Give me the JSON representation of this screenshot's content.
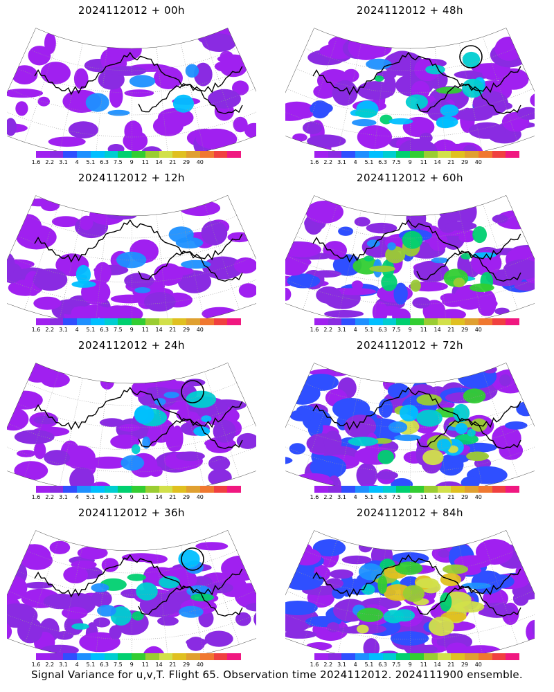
{
  "panels": [
    {
      "title": "2024112012 + 00h",
      "intensity": 0.15
    },
    {
      "title": "2024112012 + 48h",
      "intensity": 0.55,
      "circle": true
    },
    {
      "title": "2024112012 + 12h",
      "intensity": 0.25
    },
    {
      "title": "2024112012 + 60h",
      "intensity": 0.7
    },
    {
      "title": "2024112012 + 24h",
      "intensity": 0.38,
      "circle": true
    },
    {
      "title": "2024112012 + 72h",
      "intensity": 0.82
    },
    {
      "title": "2024112012 + 36h",
      "intensity": 0.45,
      "circle": true
    },
    {
      "title": "2024112012 + 84h",
      "intensity": 0.95
    }
  ],
  "colorbar": {
    "colors": [
      "#a020f0",
      "#8a2be2",
      "#2f4fff",
      "#1e90ff",
      "#00bfff",
      "#00ced1",
      "#00d070",
      "#32cd32",
      "#9acd32",
      "#d2e04a",
      "#e0c020",
      "#e0a030",
      "#f07830",
      "#f04040",
      "#f01880"
    ],
    "labels": [
      "1.6",
      "2.2",
      "3.1",
      "4",
      "5.1",
      "6.3",
      "7.5",
      "9",
      "11",
      "14",
      "21",
      "29",
      "40"
    ]
  },
  "caption": "Signal Variance for u,v,T. Flight 65. Observation time 2024112012. 2024111900 ensemble."
}
